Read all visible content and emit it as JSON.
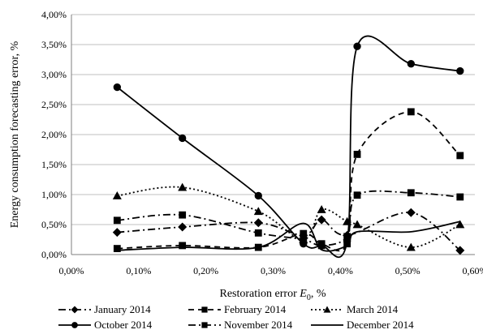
{
  "chart_data": {
    "type": "line",
    "title": "",
    "xlabel_prefix": "Restoration error ",
    "xlabel_symbol": "E",
    "xlabel_sub": "0",
    "xlabel_suffix": ", %",
    "ylabel": "Energy consumption forecasting error, %",
    "xlim": [
      0,
      0.6
    ],
    "ylim": [
      0,
      4
    ],
    "x_ticks": [
      0,
      0.1,
      0.2,
      0.3,
      0.4,
      0.5,
      0.6
    ],
    "x_tick_labels": [
      "0,00%",
      "0,10%",
      "0,20%",
      "0,30%",
      "0,40%",
      "0,50%",
      "0,60%"
    ],
    "y_ticks": [
      0,
      0.5,
      1,
      1.5,
      2,
      2.5,
      3,
      3.5,
      4
    ],
    "y_tick_labels": [
      "0,00%",
      "0,50%",
      "1,00%",
      "1,50%",
      "2,00%",
      "2,50%",
      "3,00%",
      "3,50%",
      "4,00%"
    ],
    "grid": "horizontal",
    "legend_position": "bottom",
    "series": [
      {
        "name": "January 2014",
        "marker": "diamond",
        "dash": "longdash-dot",
        "points": [
          [
            0.068,
            0.37
          ],
          [
            0.165,
            0.46
          ],
          [
            0.278,
            0.53
          ],
          [
            0.345,
            0.32
          ],
          [
            0.372,
            0.58
          ],
          [
            0.41,
            0.32
          ],
          [
            0.505,
            0.7
          ],
          [
            0.578,
            0.07
          ]
        ]
      },
      {
        "name": "February 2014",
        "marker": "square",
        "dash": "dash",
        "points": [
          [
            0.068,
            0.1
          ],
          [
            0.165,
            0.15
          ],
          [
            0.278,
            0.12
          ],
          [
            0.345,
            0.35
          ],
          [
            0.372,
            0.18
          ],
          [
            0.41,
            0.18
          ],
          [
            0.425,
            1.67
          ],
          [
            0.505,
            2.38
          ],
          [
            0.578,
            1.65
          ]
        ]
      },
      {
        "name": "March 2014",
        "marker": "triangle",
        "dash": "dot",
        "points": [
          [
            0.068,
            0.98
          ],
          [
            0.165,
            1.12
          ],
          [
            0.278,
            0.72
          ],
          [
            0.345,
            0.25
          ],
          [
            0.372,
            0.75
          ],
          [
            0.41,
            0.55
          ],
          [
            0.425,
            0.5
          ],
          [
            0.505,
            0.12
          ],
          [
            0.578,
            0.5
          ]
        ]
      },
      {
        "name": "October 2014",
        "marker": "circle",
        "dash": "solid",
        "points": [
          [
            0.068,
            2.79
          ],
          [
            0.165,
            1.94
          ],
          [
            0.278,
            0.98
          ],
          [
            0.345,
            0.18
          ],
          [
            0.372,
            0.15
          ],
          [
            0.41,
            0.22
          ],
          [
            0.425,
            3.47
          ],
          [
            0.505,
            3.18
          ],
          [
            0.578,
            3.06
          ]
        ]
      },
      {
        "name": "November 2014",
        "marker": "square",
        "dash": "longdash-dot",
        "points": [
          [
            0.068,
            0.57
          ],
          [
            0.165,
            0.66
          ],
          [
            0.278,
            0.36
          ],
          [
            0.345,
            0.25
          ],
          [
            0.372,
            0.15
          ],
          [
            0.41,
            0.3
          ],
          [
            0.425,
            0.99
          ],
          [
            0.505,
            1.03
          ],
          [
            0.578,
            0.96
          ]
        ]
      },
      {
        "name": "December 2014",
        "marker": "none",
        "dash": "solid",
        "points": [
          [
            0.068,
            0.07
          ],
          [
            0.165,
            0.12
          ],
          [
            0.278,
            0.12
          ],
          [
            0.345,
            0.52
          ],
          [
            0.372,
            0.08
          ],
          [
            0.41,
            0.15
          ],
          [
            0.425,
            0.38
          ],
          [
            0.505,
            0.38
          ],
          [
            0.578,
            0.55
          ]
        ]
      }
    ]
  }
}
